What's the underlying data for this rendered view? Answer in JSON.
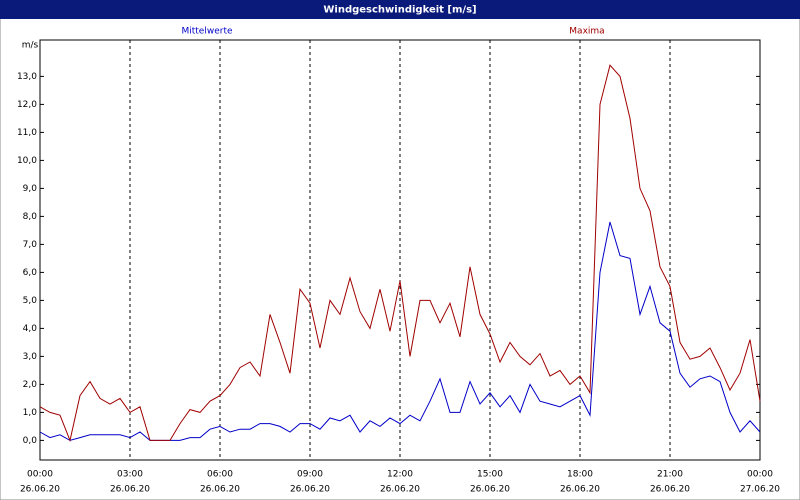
{
  "window_title": "Windgeschwindigkeit [m/s]",
  "chart_data": {
    "type": "line",
    "y_label": "m/s",
    "x": [
      0,
      20,
      40,
      60,
      80,
      100,
      120,
      140,
      160,
      180,
      200,
      220,
      240,
      260,
      280,
      300,
      320,
      340,
      360,
      380,
      400,
      420,
      440,
      460,
      480,
      500,
      520,
      540,
      560,
      580,
      600,
      620,
      640,
      660,
      680,
      700,
      720,
      740,
      760,
      780,
      800,
      820,
      840,
      860,
      880,
      900,
      920,
      940,
      960,
      980,
      1000,
      1020,
      1040,
      1060,
      1080,
      1100,
      1120,
      1140,
      1160,
      1180,
      1200,
      1220,
      1240,
      1260,
      1280,
      1300,
      1320,
      1340,
      1360,
      1380,
      1400,
      1420,
      1440
    ],
    "series": [
      {
        "name": "Mittelwerte",
        "color": "#0000c8",
        "values": [
          0.3,
          0.1,
          0.2,
          0,
          0.1,
          0.2,
          0.2,
          0.2,
          0.2,
          0.1,
          0.3,
          0,
          0,
          0,
          0,
          0.1,
          0.1,
          0.4,
          0.5,
          0.3,
          0.4,
          0.4,
          0.6,
          0.6,
          0.5,
          0.3,
          0.6,
          0.6,
          0.4,
          0.8,
          0.7,
          0.9,
          0.3,
          0.7,
          0.5,
          0.8,
          0.6,
          0.9,
          0.7,
          1.4,
          2.2,
          1.0,
          1.0,
          2.1,
          1.3,
          1.7,
          1.2,
          1.6,
          1.0,
          2.0,
          1.4,
          1.3,
          1.2,
          1.4,
          1.6,
          0.9,
          6.0,
          7.8,
          6.6,
          6.5,
          4.5,
          5.5,
          4.2,
          3.9,
          2.4,
          1.9,
          2.2,
          2.3,
          2.1,
          1.0,
          0.3,
          0.7,
          0.3
        ]
      },
      {
        "name": "Maxima",
        "color": "#a00000",
        "values": [
          1.2,
          1.0,
          0.9,
          0,
          1.6,
          2.1,
          1.5,
          1.3,
          1.5,
          1.0,
          1.2,
          0,
          0,
          0,
          0.6,
          1.1,
          1.0,
          1.4,
          1.6,
          2.0,
          2.6,
          2.8,
          2.3,
          4.5,
          3.5,
          2.4,
          5.4,
          4.9,
          3.3,
          5.0,
          4.5,
          5.8,
          4.6,
          4.0,
          5.4,
          3.9,
          5.7,
          3.0,
          5.0,
          5.0,
          4.2,
          4.9,
          3.7,
          6.2,
          4.5,
          3.8,
          2.8,
          3.5,
          3.0,
          2.7,
          3.1,
          2.3,
          2.5,
          2.0,
          2.3,
          1.7,
          12.0,
          13.4,
          13.0,
          11.5,
          9.0,
          8.2,
          6.2,
          5.5,
          3.5,
          2.9,
          3.0,
          3.3,
          2.6,
          1.8,
          2.4,
          3.6,
          1.4
        ]
      }
    ],
    "xlim": [
      0,
      1440
    ],
    "xticks": [
      {
        "value": 0,
        "label": "00:00",
        "date": "26.06.20"
      },
      {
        "value": 180,
        "label": "03:00",
        "date": "26.06.20"
      },
      {
        "value": 360,
        "label": "06:00",
        "date": "26.06.20"
      },
      {
        "value": 540,
        "label": "09:00",
        "date": "26.06.20"
      },
      {
        "value": 720,
        "label": "12:00",
        "date": "26.06.20"
      },
      {
        "value": 900,
        "label": "15:00",
        "date": "26.06.20"
      },
      {
        "value": 1080,
        "label": "18:00",
        "date": "26.06.20"
      },
      {
        "value": 1260,
        "label": "21:00",
        "date": "26.06.20"
      },
      {
        "value": 1440,
        "label": "00:00",
        "date": "27.06.20"
      }
    ],
    "ylim": [
      -0.7,
      14.3
    ],
    "yticks": [
      {
        "value": 0,
        "label": "0,0"
      },
      {
        "value": 1,
        "label": "1,0"
      },
      {
        "value": 2,
        "label": "2,0"
      },
      {
        "value": 3,
        "label": "3,0"
      },
      {
        "value": 4,
        "label": "4,0"
      },
      {
        "value": 5,
        "label": "5,0"
      },
      {
        "value": 6,
        "label": "6,0"
      },
      {
        "value": 7,
        "label": "7,0"
      },
      {
        "value": 8,
        "label": "8,0"
      },
      {
        "value": 9,
        "label": "9,0"
      },
      {
        "value": 10,
        "label": "10,0"
      },
      {
        "value": 11,
        "label": "11,0"
      },
      {
        "value": 12,
        "label": "12,0"
      },
      {
        "value": 13,
        "label": "13,0"
      }
    ],
    "xgrid": true
  }
}
